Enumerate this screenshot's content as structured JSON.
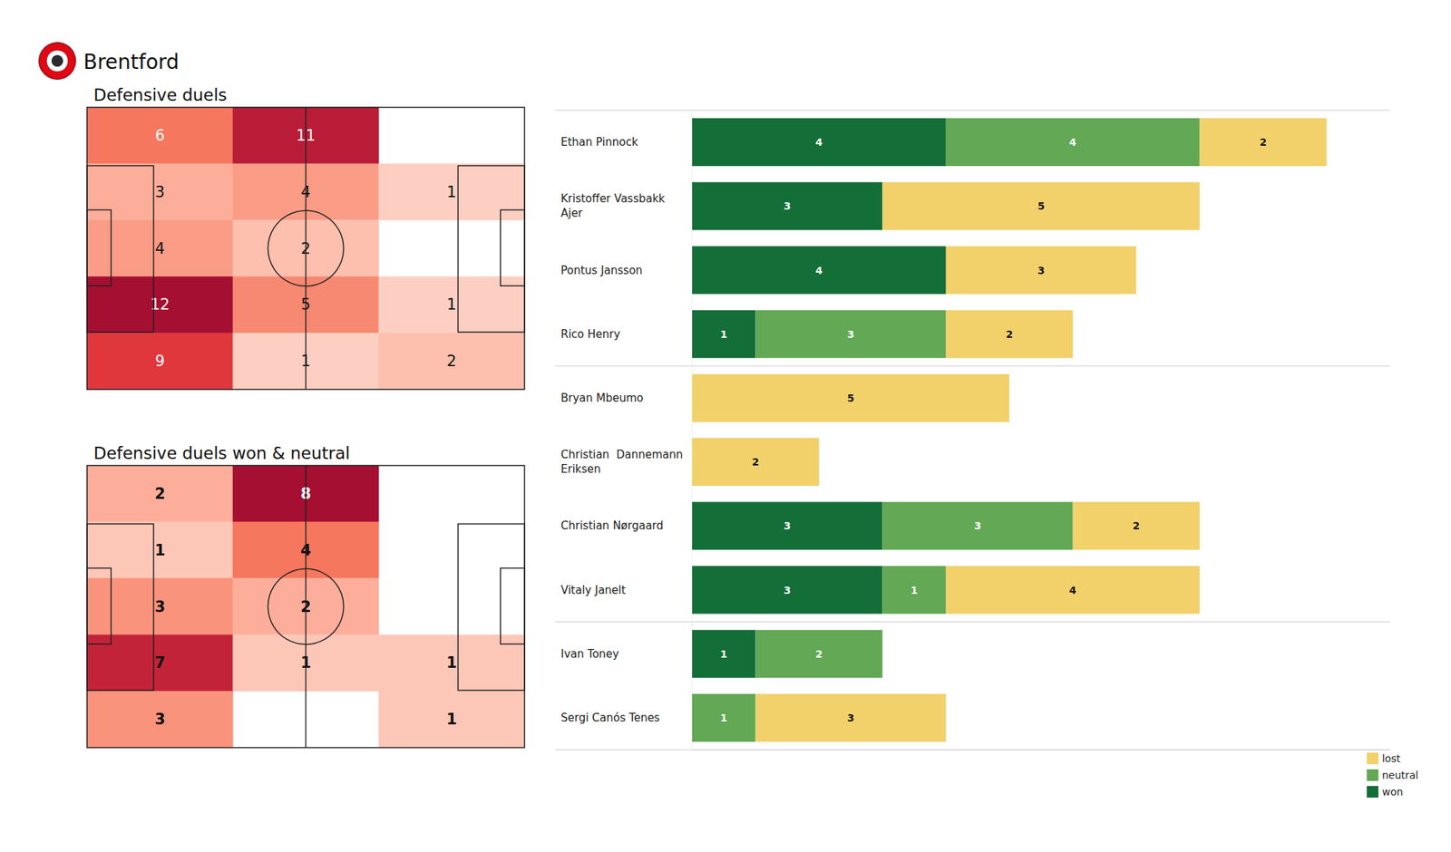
{
  "title": "Brentford",
  "chart_data": [
    {
      "type": "heatmap",
      "title": "Defensive duels",
      "cells": [
        [
          6,
          11,
          null
        ],
        [
          3,
          4,
          1
        ],
        [
          4,
          2,
          null
        ],
        [
          12,
          5,
          1
        ],
        [
          9,
          1,
          2
        ]
      ],
      "color_range": [
        0,
        12
      ],
      "data_labels": true,
      "tick_labels": false
    },
    {
      "type": "heatmap",
      "title": "Defensive duels won & neutral",
      "cells": [
        [
          2,
          8,
          null
        ],
        [
          1,
          4,
          null
        ],
        [
          3,
          2,
          null
        ],
        [
          7,
          1,
          1
        ],
        [
          3,
          null,
          1
        ]
      ],
      "color_range": [
        0,
        8
      ],
      "data_labels": true,
      "tick_labels": false
    },
    {
      "type": "bar",
      "orientation": "horizontal",
      "stacked": true,
      "data_labels": true,
      "tick_labels": "y",
      "legend": "lower right",
      "xlim": [
        0,
        11
      ],
      "categories": [
        "Ethan Pinnock",
        "Kristoffer Vassbakk Ajer",
        "Pontus Jansson",
        "Rico Henry",
        "Bryan Mbeumo",
        "Christian  Dannemann Eriksen",
        "Christian Nørgaard",
        "Vitaly Janelt",
        "Ivan Toney",
        "Sergi Canós Tenes"
      ],
      "series": [
        {
          "name": "won",
          "color": "#146e37",
          "values": [
            4,
            3,
            4,
            1,
            null,
            null,
            3,
            3,
            1,
            null
          ]
        },
        {
          "name": "neutral",
          "color": "#62a855",
          "values": [
            4,
            null,
            null,
            3,
            null,
            null,
            3,
            1,
            2,
            1
          ]
        },
        {
          "name": "lost",
          "color": "#f2d16b",
          "values": [
            2,
            5,
            3,
            2,
            5,
            2,
            2,
            4,
            null,
            3
          ]
        }
      ]
    }
  ]
}
